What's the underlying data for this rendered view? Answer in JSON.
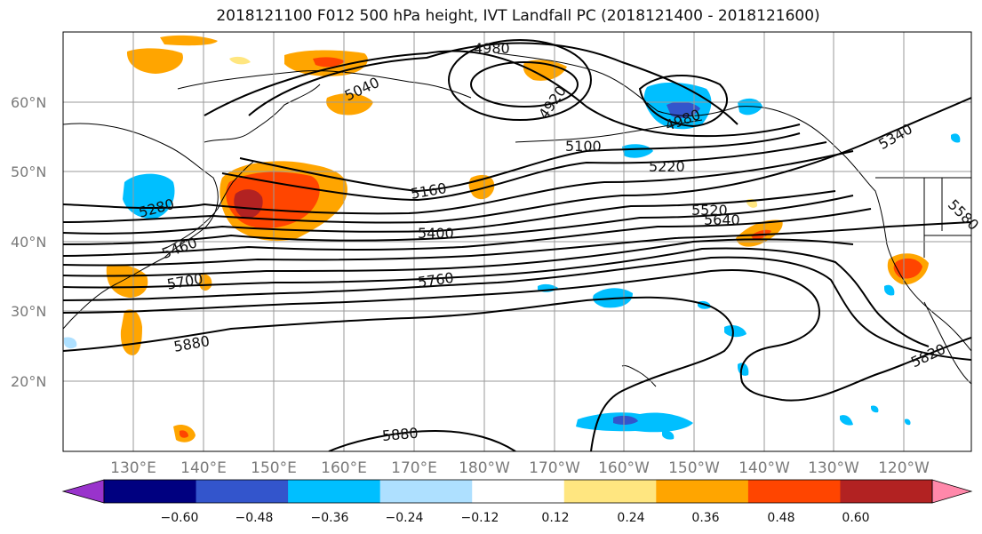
{
  "title": "2018121100 F012 500 hPa height, IVT Landfall PC (2018121400 - 2018121600)",
  "lat_labels": [
    "60°N",
    "50°N",
    "40°N",
    "30°N",
    "20°N"
  ],
  "lon_labels": [
    "130°E",
    "140°E",
    "150°E",
    "160°E",
    "170°E",
    "180°W",
    "170°W",
    "160°W",
    "150°W",
    "140°W",
    "130°W",
    "120°W"
  ],
  "contour_labels": [
    "4980",
    "4920",
    "4980",
    "5040",
    "5100",
    "5160",
    "5220",
    "5280",
    "5340",
    "5400",
    "5460",
    "5520",
    "5580",
    "5640",
    "5700",
    "5760",
    "5820",
    "5880",
    "5880"
  ],
  "colorbar": {
    "ticks": [
      "−0.60",
      "−0.48",
      "−0.36",
      "−0.24",
      "−0.12",
      "0.12",
      "0.24",
      "0.36",
      "0.48",
      "0.60"
    ],
    "colors": [
      "#9933cc",
      "#000080",
      "#3355cc",
      "#00bfff",
      "#aee0ff",
      "#ffffff",
      "#ffe680",
      "#ffa500",
      "#ff4500",
      "#b22222",
      "#ff88aa"
    ]
  },
  "colors": {
    "negative_strong": "#3355cc",
    "negative": "#00bfff",
    "negative_weak": "#aee0ff",
    "positive_weak": "#ffe680",
    "positive": "#ffa500",
    "positive_strong": "#ff4500",
    "positive_max": "#b22222"
  }
}
